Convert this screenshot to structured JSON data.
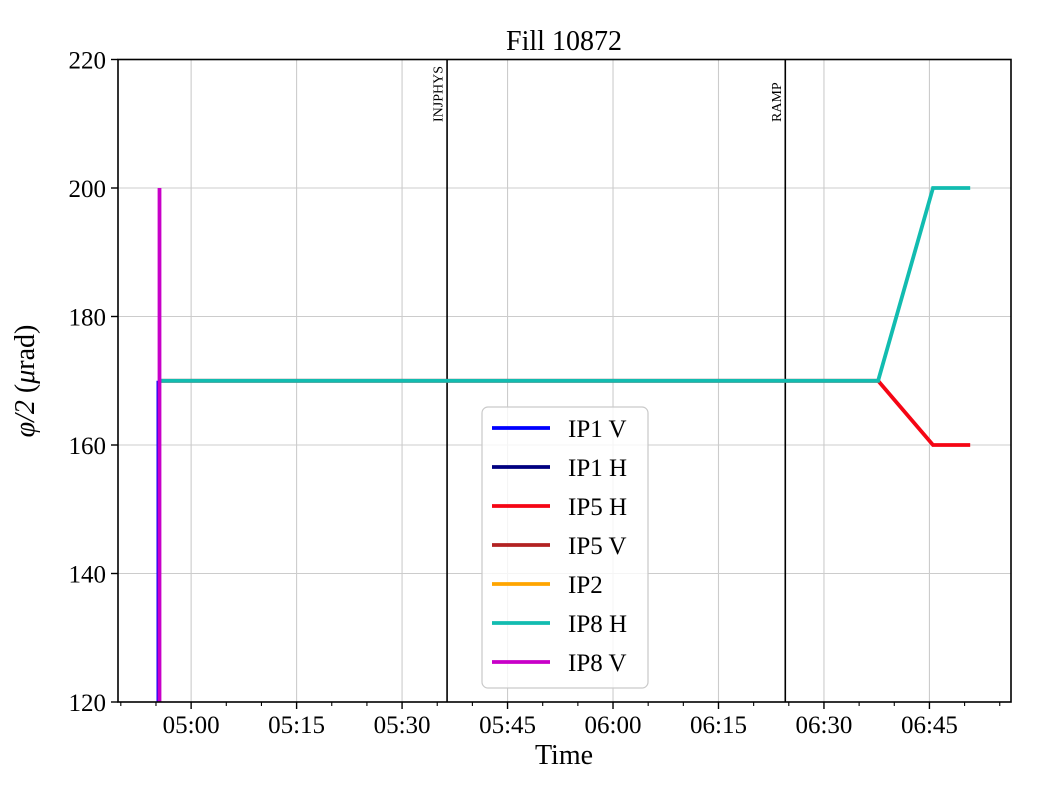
{
  "chart_data": {
    "type": "line",
    "title": "Fill 10872",
    "xlabel": "Time",
    "ylabel_text": "φ/2 (μrad)",
    "ylabel_parts": {
      "head": "φ/2",
      "open": " (",
      "mu": "μ",
      "unit": "rad)"
    },
    "xlim": [
      "04:49:36",
      "06:56:36"
    ],
    "ylim": [
      120,
      220
    ],
    "x_ticks": [
      {
        "t": "05:00",
        "label": "05:00"
      },
      {
        "t": "05:15",
        "label": "05:15"
      },
      {
        "t": "05:30",
        "label": "05:30"
      },
      {
        "t": "05:45",
        "label": "05:45"
      },
      {
        "t": "06:00",
        "label": "06:00"
      },
      {
        "t": "06:15",
        "label": "06:15"
      },
      {
        "t": "06:30",
        "label": "06:30"
      },
      {
        "t": "06:45",
        "label": "06:45"
      }
    ],
    "x_minor_tick_minutes": 5,
    "y_ticks": [
      120,
      140,
      160,
      180,
      200,
      220
    ],
    "grid": true,
    "grid_color": "#cccccc",
    "series": [
      {
        "name": "IP1 V",
        "color": "#0000ff",
        "points": [
          [
            "04:55:21",
            170
          ],
          [
            "04:55:21",
            120
          ]
        ]
      },
      {
        "name": "IP1 H",
        "color": "#000080",
        "points": []
      },
      {
        "name": "IP5 H",
        "color": "#f50514",
        "points": [
          [
            "04:55:30",
            170
          ],
          [
            "06:37:42",
            170
          ],
          [
            "06:45:30",
            160
          ],
          [
            "06:50:48",
            160
          ]
        ]
      },
      {
        "name": "IP5 V",
        "color": "#b22222",
        "points": []
      },
      {
        "name": "IP2",
        "color": "#ffa500",
        "points": []
      },
      {
        "name": "IP8 H",
        "color": "#12bcb0",
        "points": [
          [
            "04:55:30",
            170
          ],
          [
            "06:37:42",
            170
          ],
          [
            "06:45:30",
            200
          ],
          [
            "06:50:48",
            200
          ]
        ]
      },
      {
        "name": "IP8 V",
        "color": "#c800c8",
        "points": [
          [
            "04:55:30",
            200
          ],
          [
            "04:55:30",
            120
          ]
        ]
      }
    ],
    "event_markers": [
      {
        "label": "INJPHYS",
        "t": "05:36:24"
      },
      {
        "label": "RAMP",
        "t": "06:24:30"
      }
    ],
    "legend": {
      "position": "center",
      "entries": [
        "IP1 V",
        "IP1 H",
        "IP5 H",
        "IP5 V",
        "IP2",
        "IP8 H",
        "IP8 V"
      ]
    }
  }
}
